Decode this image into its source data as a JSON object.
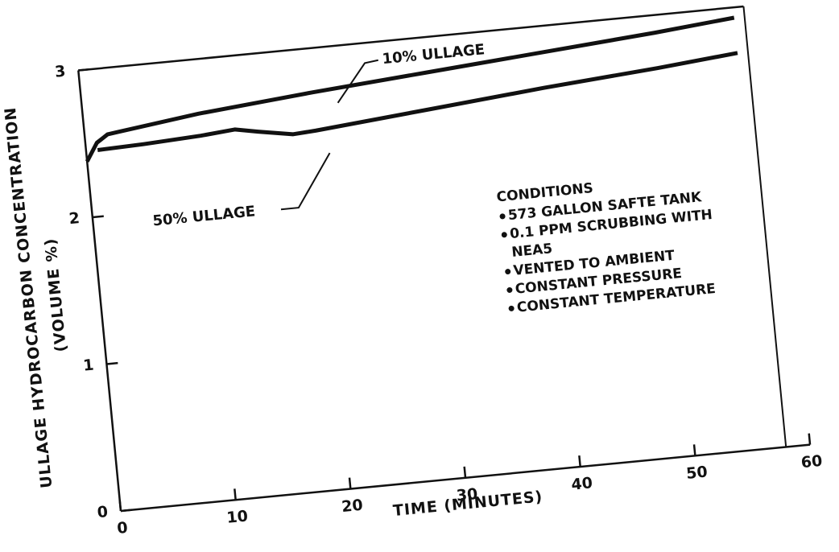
{
  "chart_data": {
    "type": "line",
    "xlabel": "TIME (MINUTES)",
    "ylabel": [
      "ULLAGE HYDROCARBON CONCENTRATION",
      "(VOLUME %)"
    ],
    "xlim": [
      0,
      60
    ],
    "xticks": [
      0,
      10,
      20,
      30,
      40,
      50,
      60
    ],
    "ylim": [
      0,
      3
    ],
    "yticks": [
      0,
      1,
      2,
      3
    ],
    "series": [
      {
        "name": "10% ULLAGE",
        "color": "#111111",
        "x": [
          0,
          1,
          2,
          3,
          5,
          10,
          20,
          30,
          40,
          50,
          57
        ],
        "values": [
          2.38,
          2.5,
          2.55,
          2.56,
          2.58,
          2.63,
          2.7,
          2.76,
          2.82,
          2.88,
          2.93
        ]
      },
      {
        "name": "50% ULLAGE",
        "color": "#111111",
        "x": [
          1,
          5,
          10,
          13,
          15,
          18,
          20,
          30,
          40,
          50,
          57
        ],
        "values": [
          2.45,
          2.46,
          2.48,
          2.5,
          2.47,
          2.43,
          2.44,
          2.51,
          2.58,
          2.64,
          2.69
        ]
      }
    ],
    "conditions": {
      "title": "CONDITIONS",
      "items": [
        "573 GALLON SAFTE TANK",
        "0.1 PPM SCRUBBING WITH",
        "NEA5",
        "VENTED TO AMBIENT",
        "CONSTANT PRESSURE",
        "CONSTANT TEMPERATURE"
      ]
    }
  }
}
